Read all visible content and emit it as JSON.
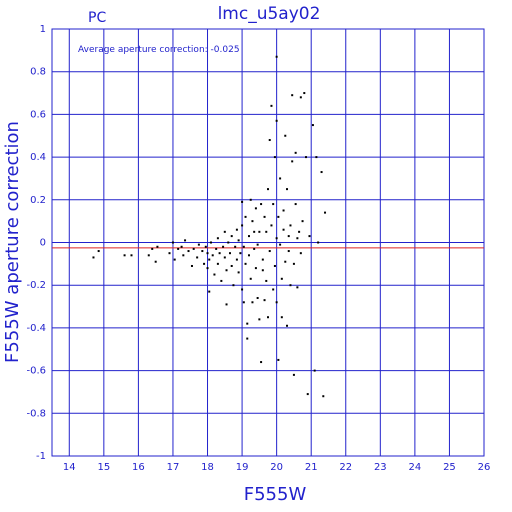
{
  "chart_data": {
    "type": "scatter",
    "title": "lmc_u5ay02",
    "corner_label": "PC",
    "annotation": "Average aperture correction: -0.025",
    "xlabel": "F555W",
    "ylabel": "F555W aperture correction",
    "xlim": [
      13.5,
      26
    ],
    "ylim": [
      -1,
      1
    ],
    "xticks": [
      "14",
      "15",
      "16",
      "17",
      "18",
      "19",
      "20",
      "21",
      "22",
      "23",
      "24",
      "25",
      "26"
    ],
    "yticks": [
      "1",
      "0.8",
      "0.6",
      "0.4",
      "0.2",
      "0",
      "-0.2",
      "-0.4",
      "-0.6",
      "-0.8",
      "-1"
    ],
    "xtick_values": [
      14,
      15,
      16,
      17,
      18,
      19,
      20,
      21,
      22,
      23,
      24,
      25,
      26
    ],
    "ytick_values": [
      1,
      0.8,
      0.6,
      0.4,
      0.2,
      0,
      -0.2,
      -0.4,
      -0.6,
      -0.8,
      -1
    ],
    "grid": true,
    "average_line": -0.025,
    "colors": {
      "axes": "#2222cc",
      "points": "#000000",
      "average_line": "#dd2222"
    },
    "points": [
      [
        14.7,
        -0.07
      ],
      [
        14.85,
        -0.04
      ],
      [
        15.6,
        -0.06
      ],
      [
        15.8,
        -0.06
      ],
      [
        16.3,
        -0.06
      ],
      [
        16.4,
        -0.03
      ],
      [
        16.5,
        -0.09
      ],
      [
        16.55,
        -0.02
      ],
      [
        16.9,
        -0.05
      ],
      [
        17.0,
        0.0
      ],
      [
        17.05,
        -0.08
      ],
      [
        17.15,
        -0.03
      ],
      [
        17.25,
        -0.02
      ],
      [
        17.3,
        -0.06
      ],
      [
        17.35,
        0.01
      ],
      [
        17.45,
        -0.04
      ],
      [
        17.55,
        -0.11
      ],
      [
        17.6,
        -0.03
      ],
      [
        17.7,
        -0.07
      ],
      [
        17.75,
        -0.01
      ],
      [
        17.85,
        -0.04
      ],
      [
        17.9,
        -0.1
      ],
      [
        17.95,
        -0.02
      ],
      [
        18.0,
        -0.05
      ],
      [
        18.0,
        -0.12
      ],
      [
        18.05,
        -0.08
      ],
      [
        18.05,
        -0.23
      ],
      [
        18.1,
        0.0
      ],
      [
        18.15,
        -0.06
      ],
      [
        18.2,
        -0.15
      ],
      [
        18.25,
        -0.03
      ],
      [
        18.3,
        -0.1
      ],
      [
        18.3,
        0.02
      ],
      [
        18.35,
        -0.05
      ],
      [
        18.4,
        -0.18
      ],
      [
        18.45,
        -0.02
      ],
      [
        18.5,
        -0.07
      ],
      [
        18.5,
        0.05
      ],
      [
        18.55,
        -0.13
      ],
      [
        18.55,
        -0.29
      ],
      [
        18.6,
        0.0
      ],
      [
        18.65,
        -0.05
      ],
      [
        18.7,
        -0.11
      ],
      [
        18.7,
        0.03
      ],
      [
        18.75,
        -0.2
      ],
      [
        18.8,
        -0.02
      ],
      [
        18.85,
        -0.08
      ],
      [
        18.85,
        0.06
      ],
      [
        18.9,
        -0.14
      ],
      [
        18.9,
        0.01
      ],
      [
        18.95,
        -0.05
      ],
      [
        19.0,
        -0.22
      ],
      [
        19.0,
        0.08
      ],
      [
        19.0,
        0.19
      ],
      [
        19.05,
        -0.02
      ],
      [
        19.05,
        -0.28
      ],
      [
        19.1,
        -0.1
      ],
      [
        19.1,
        0.12
      ],
      [
        19.15,
        -0.38
      ],
      [
        19.15,
        -0.45
      ],
      [
        19.2,
        0.03
      ],
      [
        19.2,
        -0.06
      ],
      [
        19.25,
        -0.17
      ],
      [
        19.25,
        0.2
      ],
      [
        19.3,
        -0.28
      ],
      [
        19.3,
        0.1
      ],
      [
        19.35,
        -0.03
      ],
      [
        19.35,
        0.05
      ],
      [
        19.4,
        -0.12
      ],
      [
        19.4,
        0.16
      ],
      [
        19.45,
        -0.26
      ],
      [
        19.45,
        -0.01
      ],
      [
        19.5,
        0.05
      ],
      [
        19.5,
        -0.36
      ],
      [
        19.55,
        -0.56
      ],
      [
        19.55,
        0.18
      ],
      [
        19.6,
        -0.08
      ],
      [
        19.6,
        -0.13
      ],
      [
        19.65,
        -0.27
      ],
      [
        19.65,
        0.12
      ],
      [
        19.7,
        0.05
      ],
      [
        19.7,
        -0.18
      ],
      [
        19.75,
        0.25
      ],
      [
        19.75,
        -0.35
      ],
      [
        19.8,
        0.48
      ],
      [
        19.8,
        -0.04
      ],
      [
        19.85,
        0.08
      ],
      [
        19.85,
        0.64
      ],
      [
        19.9,
        -0.22
      ],
      [
        19.9,
        0.18
      ],
      [
        19.95,
        -0.11
      ],
      [
        19.95,
        0.4
      ],
      [
        20.0,
        -0.28
      ],
      [
        20.0,
        0.02
      ],
      [
        20.0,
        0.57
      ],
      [
        20.0,
        0.87
      ],
      [
        20.05,
        -0.55
      ],
      [
        20.05,
        0.12
      ],
      [
        20.1,
        -0.01
      ],
      [
        20.1,
        0.3
      ],
      [
        20.15,
        -0.17
      ],
      [
        20.15,
        -0.35
      ],
      [
        20.2,
        0.06
      ],
      [
        20.2,
        0.15
      ],
      [
        20.25,
        -0.09
      ],
      [
        20.25,
        0.5
      ],
      [
        20.3,
        -0.39
      ],
      [
        20.3,
        0.25
      ],
      [
        20.35,
        -0.04
      ],
      [
        20.35,
        0.03
      ],
      [
        20.4,
        0.08
      ],
      [
        20.4,
        -0.2
      ],
      [
        20.45,
        0.38
      ],
      [
        20.45,
        0.69
      ],
      [
        20.5,
        -0.62
      ],
      [
        20.5,
        -0.1
      ],
      [
        20.55,
        0.42
      ],
      [
        20.55,
        0.18
      ],
      [
        20.6,
        -0.21
      ],
      [
        20.6,
        0.02
      ],
      [
        20.65,
        0.05
      ],
      [
        20.7,
        0.68
      ],
      [
        20.7,
        -0.05
      ],
      [
        20.75,
        0.1
      ],
      [
        20.8,
        0.7
      ],
      [
        20.85,
        0.4
      ],
      [
        20.9,
        -0.71
      ],
      [
        20.95,
        0.03
      ],
      [
        21.05,
        0.55
      ],
      [
        21.1,
        -0.6
      ],
      [
        21.15,
        0.4
      ],
      [
        21.2,
        0.0
      ],
      [
        21.3,
        0.33
      ],
      [
        21.35,
        -0.72
      ],
      [
        21.4,
        0.14
      ]
    ]
  }
}
